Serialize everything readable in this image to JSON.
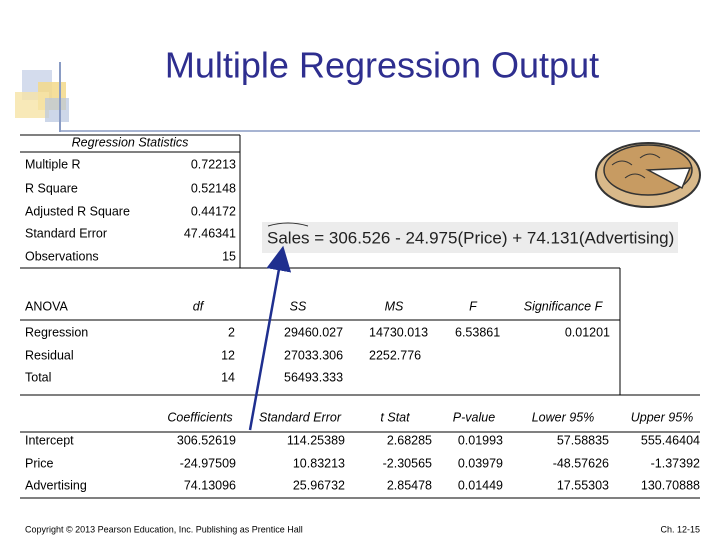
{
  "title": "Multiple Regression Output",
  "regression_statistics": {
    "heading": "Regression Statistics",
    "rows": [
      [
        "Multiple R",
        "0.72213"
      ],
      [
        "R Square",
        "0.52148"
      ],
      [
        "Adjusted R Square",
        "0.44172"
      ],
      [
        "Standard Error",
        "47.46341"
      ],
      [
        "Observations",
        "15"
      ]
    ]
  },
  "equation": "Sales = 306.526 - 24.975(Price) + 74.131(Advertising)",
  "anova": {
    "header": [
      "ANOVA",
      "df",
      "SS",
      "MS",
      "F",
      "Significance F"
    ],
    "rows": [
      [
        "Regression",
        "2",
        "29460.027",
        "14730.013",
        "6.53861",
        "0.01201"
      ],
      [
        "Residual",
        "12",
        "27033.306",
        "2252.776"
      ],
      [
        "Total",
        "14",
        "56493.333"
      ]
    ]
  },
  "coefficients": {
    "header": [
      "Coefficients",
      "Standard Error",
      "t Stat",
      "P-value",
      "Lower 95%",
      "Upper 95%"
    ],
    "rows": [
      [
        "Intercept",
        "306.52619",
        "114.25389",
        "2.68285",
        "0.01993",
        "57.58835",
        "555.46404"
      ],
      [
        "Price",
        "-24.97509",
        "10.83213",
        "-2.30565",
        "0.03979",
        "-48.57626",
        "-1.37392"
      ],
      [
        "Advertising",
        "74.13096",
        "25.96732",
        "2.85478",
        "0.01449",
        "17.55303",
        "130.70888"
      ]
    ]
  },
  "footer": {
    "copyright": "Copyright © 2013 Pearson Education, Inc. Publishing as Prentice Hall",
    "page": "Ch. 12-15"
  }
}
